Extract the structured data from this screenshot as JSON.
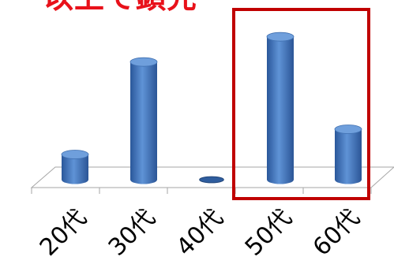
{
  "chart_data": {
    "type": "bar",
    "title": "以上で顕先",
    "categories": [
      "20代",
      "30代",
      "40代",
      "50代",
      "60代"
    ],
    "values": [
      3,
      14,
      0,
      17,
      6
    ],
    "ylim": [
      0,
      18
    ],
    "grid": false,
    "highlight": {
      "categories": [
        "50代",
        "60代"
      ],
      "color": "#c00000"
    },
    "colors": {
      "bar": "#3f73b8",
      "title": "#e8111a",
      "axis": "#a6a6a6"
    }
  }
}
